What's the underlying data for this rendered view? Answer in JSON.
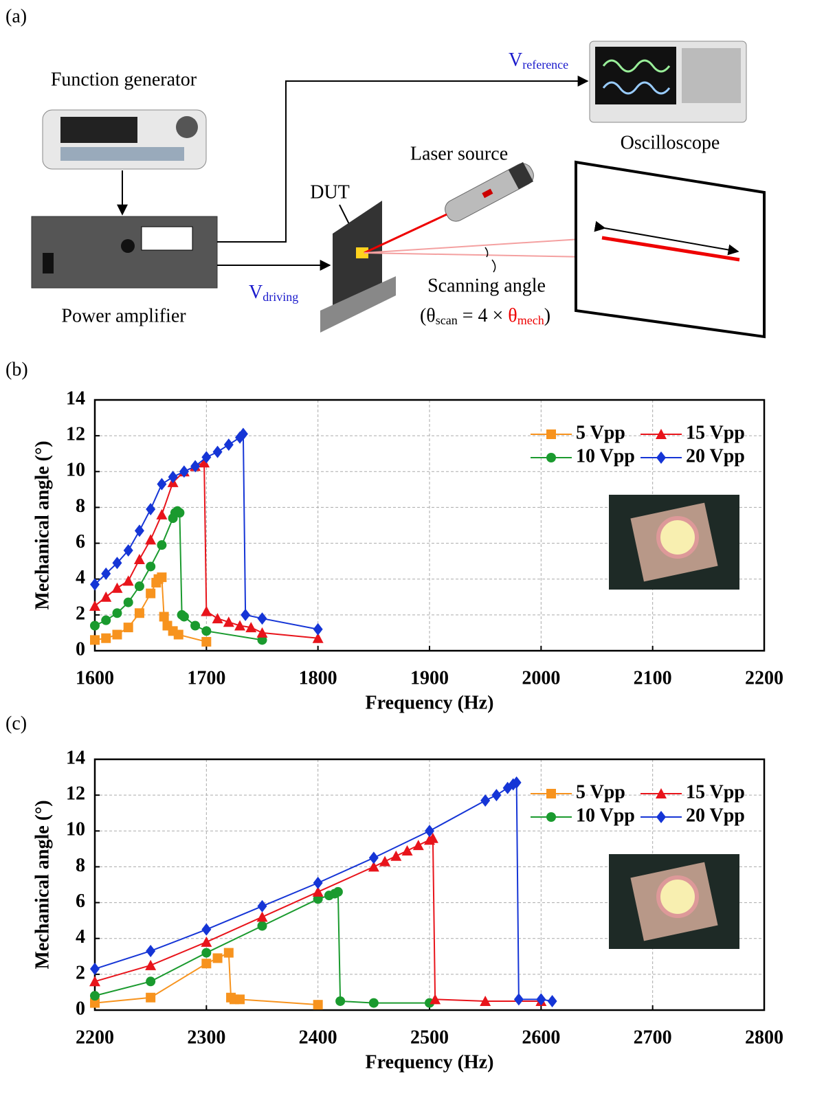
{
  "diagram": {
    "panel": "(a)",
    "function_generator": "Function generator",
    "power_amplifier": "Power amplifier",
    "oscilloscope": "Oscilloscope",
    "laser_source": "Laser source",
    "dut": "DUT",
    "v_reference": {
      "main": "V",
      "sub": "reference"
    },
    "v_driving": {
      "main": "V",
      "sub": "driving"
    },
    "scanning_angle": "Scanning angle",
    "scan_formula": [
      "(θ",
      "scan",
      " = 4 × ",
      "θ",
      "mech",
      ")"
    ]
  },
  "chart_data": [
    {
      "type": "line",
      "panel": "(b)",
      "x_label": "Frequency (Hz)",
      "y_label": "Mechanical angle (°)",
      "xlim": [
        1600,
        2200
      ],
      "xticks": [
        1600,
        1700,
        1800,
        1900,
        2000,
        2100,
        2200
      ],
      "ylim": [
        0,
        14
      ],
      "yticks": [
        0,
        2,
        4,
        6,
        8,
        10,
        12,
        14
      ],
      "grid": true,
      "legend": "upper right",
      "series": [
        {
          "name": "5 Vpp",
          "color": "#f7931e",
          "marker": "square",
          "x": [
            1600,
            1610,
            1620,
            1630,
            1640,
            1650,
            1655,
            1657,
            1660,
            1662,
            1665,
            1670,
            1675,
            1700
          ],
          "values": [
            0.6,
            0.7,
            0.9,
            1.3,
            2.1,
            3.2,
            3.8,
            4.0,
            4.1,
            1.9,
            1.4,
            1.1,
            0.9,
            0.5
          ]
        },
        {
          "name": "10 Vpp",
          "color": "#1a9a2e",
          "marker": "circle",
          "x": [
            1600,
            1610,
            1620,
            1630,
            1640,
            1650,
            1660,
            1670,
            1672,
            1674,
            1676,
            1678,
            1680,
            1690,
            1700,
            1750
          ],
          "values": [
            1.4,
            1.7,
            2.1,
            2.7,
            3.6,
            4.7,
            5.9,
            7.4,
            7.7,
            7.8,
            7.7,
            2.0,
            1.9,
            1.4,
            1.1,
            0.6
          ]
        },
        {
          "name": "15 Vpp",
          "color": "#e8141b",
          "marker": "triangle",
          "x": [
            1600,
            1610,
            1620,
            1630,
            1640,
            1650,
            1660,
            1670,
            1680,
            1690,
            1698,
            1700,
            1710,
            1720,
            1730,
            1740,
            1750,
            1800
          ],
          "values": [
            2.5,
            3.0,
            3.5,
            3.9,
            5.1,
            6.2,
            7.6,
            9.4,
            10.0,
            10.3,
            10.5,
            2.2,
            1.8,
            1.6,
            1.4,
            1.3,
            1.0,
            0.7
          ]
        },
        {
          "name": "20 Vpp",
          "color": "#1535d6",
          "marker": "diamond",
          "x": [
            1600,
            1610,
            1620,
            1630,
            1640,
            1650,
            1660,
            1670,
            1680,
            1690,
            1700,
            1710,
            1720,
            1730,
            1733,
            1735,
            1750,
            1800
          ],
          "values": [
            3.7,
            4.3,
            4.9,
            5.6,
            6.7,
            7.9,
            9.3,
            9.7,
            10.0,
            10.3,
            10.8,
            11.1,
            11.5,
            11.9,
            12.1,
            2.0,
            1.8,
            1.2
          ]
        }
      ]
    },
    {
      "type": "line",
      "panel": "(c)",
      "x_label": "Frequency (Hz)",
      "y_label": "Mechanical angle (°)",
      "xlim": [
        2200,
        2800
      ],
      "xticks": [
        2200,
        2300,
        2400,
        2500,
        2600,
        2700,
        2800
      ],
      "ylim": [
        0,
        14
      ],
      "yticks": [
        0,
        2,
        4,
        6,
        8,
        10,
        12,
        14
      ],
      "grid": true,
      "legend": "upper right",
      "series": [
        {
          "name": "5 Vpp",
          "color": "#f7931e",
          "marker": "square",
          "x": [
            2200,
            2250,
            2300,
            2310,
            2320,
            2322,
            2325,
            2330,
            2400
          ],
          "values": [
            0.4,
            0.7,
            2.6,
            2.9,
            3.2,
            0.7,
            0.6,
            0.6,
            0.3
          ]
        },
        {
          "name": "10 Vpp",
          "color": "#1a9a2e",
          "marker": "circle",
          "x": [
            2200,
            2250,
            2300,
            2350,
            2400,
            2410,
            2415,
            2418,
            2420,
            2450,
            2500
          ],
          "values": [
            0.8,
            1.6,
            3.2,
            4.7,
            6.2,
            6.4,
            6.5,
            6.6,
            0.5,
            0.4,
            0.4
          ]
        },
        {
          "name": "15 Vpp",
          "color": "#e8141b",
          "marker": "triangle",
          "x": [
            2200,
            2250,
            2300,
            2350,
            2400,
            2450,
            2460,
            2470,
            2480,
            2490,
            2500,
            2503,
            2505,
            2550,
            2600
          ],
          "values": [
            1.6,
            2.5,
            3.8,
            5.2,
            6.6,
            8.0,
            8.3,
            8.6,
            8.9,
            9.2,
            9.5,
            9.6,
            0.6,
            0.5,
            0.5
          ]
        },
        {
          "name": "20 Vpp",
          "color": "#1535d6",
          "marker": "diamond",
          "x": [
            2200,
            2250,
            2300,
            2350,
            2400,
            2450,
            2500,
            2550,
            2560,
            2570,
            2575,
            2578,
            2580,
            2600,
            2610
          ],
          "values": [
            2.3,
            3.3,
            4.5,
            5.8,
            7.1,
            8.5,
            10.0,
            11.7,
            12.0,
            12.4,
            12.6,
            12.7,
            0.6,
            0.6,
            0.5
          ]
        }
      ]
    }
  ]
}
